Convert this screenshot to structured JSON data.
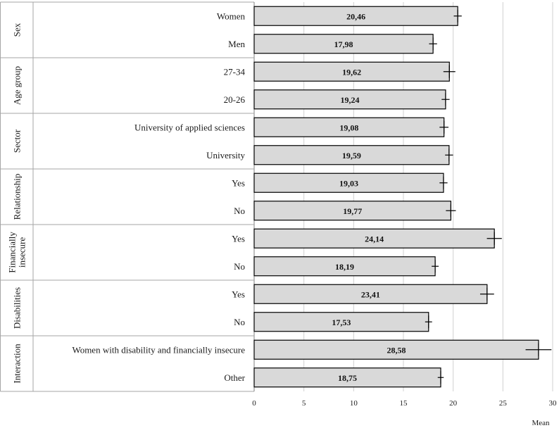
{
  "chart_data": {
    "type": "bar",
    "orientation": "horizontal",
    "xlabel": "Mean",
    "xlim": [
      0,
      30
    ],
    "xticks": [
      0,
      5,
      10,
      15,
      20,
      25,
      30
    ],
    "grid": true,
    "groups": [
      {
        "label": "Sex",
        "label_lines": [
          "Sex"
        ],
        "items": [
          {
            "category": "Women",
            "value": 20.46,
            "value_label": "20,46",
            "err": 0.4
          },
          {
            "category": "Men",
            "value": 17.98,
            "value_label": "17,98",
            "err": 0.4
          }
        ]
      },
      {
        "label": "Age group",
        "label_lines": [
          "Age group"
        ],
        "items": [
          {
            "category": "27-34",
            "value": 19.62,
            "value_label": "19,62",
            "err": 0.6
          },
          {
            "category": "20-26",
            "value": 19.24,
            "value_label": "19,24",
            "err": 0.4
          }
        ]
      },
      {
        "label": "Sector",
        "label_lines": [
          "Sector"
        ],
        "items": [
          {
            "category": "University of applied sciences",
            "value": 19.08,
            "value_label": "19,08",
            "err": 0.45
          },
          {
            "category": "University",
            "value": 19.59,
            "value_label": "19,59",
            "err": 0.4
          }
        ]
      },
      {
        "label": "Relationship",
        "label_lines": [
          "Relationship"
        ],
        "items": [
          {
            "category": "Yes",
            "value": 19.03,
            "value_label": "19,03",
            "err": 0.4
          },
          {
            "category": "No",
            "value": 19.77,
            "value_label": "19,77",
            "err": 0.5
          }
        ]
      },
      {
        "label": "Financially insecure",
        "label_lines": [
          "Financially",
          "insecure"
        ],
        "items": [
          {
            "category": "Yes",
            "value": 24.14,
            "value_label": "24,14",
            "err": 0.75
          },
          {
            "category": "No",
            "value": 18.19,
            "value_label": "18,19",
            "err": 0.35
          }
        ]
      },
      {
        "label": "Disabilities",
        "label_lines": [
          "Disabilities"
        ],
        "items": [
          {
            "category": "Yes",
            "value": 23.41,
            "value_label": "23,41",
            "err": 0.7
          },
          {
            "category": "No",
            "value": 17.53,
            "value_label": "17,53",
            "err": 0.35
          }
        ]
      },
      {
        "label": "Interaction",
        "label_lines": [
          "Interaction"
        ],
        "items": [
          {
            "category": "Women with disability and financially insecure",
            "value": 28.58,
            "value_label": "28,58",
            "err": 1.3
          },
          {
            "category": "Other",
            "value": 18.75,
            "value_label": "18,75",
            "err": 0.3
          }
        ]
      }
    ],
    "colors": {
      "bar_fill": "#d9d9d9",
      "bar_stroke": "#000000",
      "grid": "#d0d0d0",
      "border": "#a6a6a6"
    }
  }
}
